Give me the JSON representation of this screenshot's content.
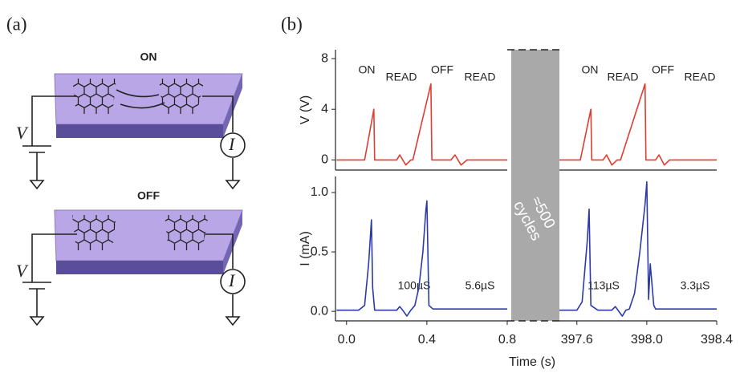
{
  "panel_a": {
    "label": "(a)",
    "top_state": "ON",
    "bottom_state": "OFF",
    "voltage": "V",
    "current": "I"
  },
  "panel_b": {
    "label": "(b)",
    "x_label": "Time (s)",
    "break_label": [
      "≈500",
      "cycles"
    ]
  },
  "chart_data": [
    {
      "type": "line",
      "ylabel": "V (V)",
      "color": "#e03c31",
      "x": [
        -0.05,
        0.09,
        0.136,
        0.14,
        0.25,
        0.265,
        0.295,
        0.32,
        0.33,
        0.42,
        0.425,
        0.52,
        0.54,
        0.57,
        0.6,
        0.8
      ],
      "values": [
        0,
        0,
        4,
        0,
        0,
        0.4,
        -0.4,
        0,
        0,
        6,
        0,
        0,
        0.4,
        -0.4,
        0,
        0
      ],
      "xlim": [
        -0.055,
        0.8
      ],
      "ylim": [
        -0.8,
        8.7
      ],
      "yticks": [
        0,
        4,
        8
      ],
      "annotations": [
        "ON",
        "READ",
        "OFF",
        "READ"
      ]
    },
    {
      "type": "line",
      "color": "#e03c31",
      "x": [
        397.5,
        397.62,
        397.68,
        397.685,
        397.75,
        397.77,
        397.8,
        397.83,
        397.85,
        397.99,
        397.995,
        398.05,
        398.07,
        398.1,
        398.13,
        398.4
      ],
      "values": [
        0,
        0,
        4,
        0,
        0,
        0.4,
        -0.4,
        0,
        0,
        6,
        0,
        0,
        0.4,
        -0.4,
        0,
        0
      ],
      "xlim": [
        397.5,
        398.4
      ],
      "ylim": [
        -0.8,
        8.7
      ],
      "annotations": [
        "ON",
        "READ",
        "OFF",
        "READ"
      ]
    },
    {
      "type": "line",
      "ylabel": "I (mA)",
      "color": "#2b3aa8",
      "x": [
        -0.05,
        0.06,
        0.09,
        0.11,
        0.124,
        0.13,
        0.14,
        0.25,
        0.265,
        0.28,
        0.3,
        0.32,
        0.34,
        0.36,
        0.38,
        0.395,
        0.4,
        0.41,
        0.43,
        0.8
      ],
      "values": [
        0.01,
        0.01,
        0.05,
        0.4,
        0.77,
        0.2,
        0.01,
        0.01,
        0.04,
        0.01,
        -0.04,
        0.01,
        0.05,
        0.2,
        0.5,
        0.85,
        0.93,
        0.05,
        0.02,
        0.02
      ],
      "xlim": [
        -0.055,
        0.8
      ],
      "ylim": [
        -0.08,
        1.135
      ],
      "xticks": [
        {
          "value": 0,
          "label": "0.0"
        },
        0.4,
        0.8
      ],
      "yticks": [
        {
          "value": 0,
          "label": "0.0"
        },
        0.5,
        {
          "value": 1,
          "label": "1.0"
        }
      ],
      "annotations": [
        "100µS",
        "5.6µS"
      ]
    },
    {
      "type": "line",
      "color": "#2b3aa8",
      "x": [
        397.5,
        397.6,
        397.63,
        397.66,
        397.67,
        397.68,
        397.72,
        397.8,
        397.82,
        397.84,
        397.86,
        397.88,
        397.9,
        397.93,
        397.96,
        397.99,
        398.0,
        398.01,
        398.02,
        398.04,
        398.05,
        398.06,
        398.4
      ],
      "values": [
        0.01,
        0.01,
        0.08,
        0.6,
        0.86,
        0.05,
        0.01,
        0.01,
        0.04,
        0.0,
        -0.04,
        0.01,
        0.02,
        0.15,
        0.5,
        0.9,
        1.09,
        0.1,
        0.4,
        0.05,
        0.02,
        0.02,
        0.02
      ],
      "xlim": [
        397.5,
        398.4
      ],
      "ylim": [
        -0.08,
        1.135
      ],
      "xticks": [
        397.6,
        {
          "value": 398,
          "label": "398.0"
        },
        398.4
      ],
      "annotations": [
        "113µS",
        "3.3µS"
      ]
    }
  ]
}
